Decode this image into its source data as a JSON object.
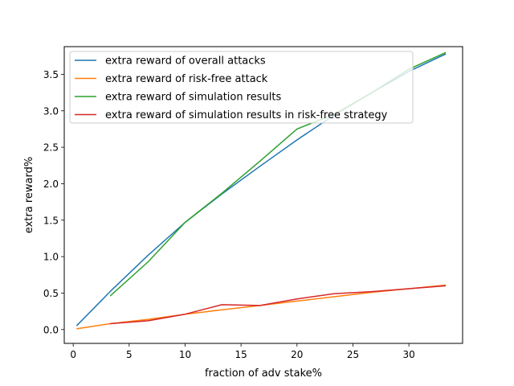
{
  "chart_data": {
    "type": "line",
    "xlabel": "fraction of adv stake%",
    "ylabel": "extra reward%",
    "xlim": [
      -0.8,
      34.8
    ],
    "ylim": [
      -0.19,
      3.88
    ],
    "xticks": [
      0,
      5,
      10,
      15,
      20,
      25,
      30
    ],
    "yticks": [
      0.0,
      0.5,
      1.0,
      1.5,
      2.0,
      2.5,
      3.0,
      3.5
    ],
    "xtick_labels": [
      "0",
      "5",
      "10",
      "15",
      "20",
      "25",
      "30"
    ],
    "ytick_labels": [
      "0.0",
      "0.5",
      "1.0",
      "1.5",
      "2.0",
      "2.5",
      "3.0",
      "3.5"
    ],
    "legend_position": "top-left",
    "series": [
      {
        "name": "extra reward of overall attacks",
        "color": "#1f77b4",
        "x": [
          0.3,
          3.3,
          6.7,
          10,
          13.3,
          16.7,
          20,
          23.3,
          26.7,
          30,
          33.3
        ],
        "y": [
          0.05,
          0.52,
          1.02,
          1.47,
          1.86,
          2.24,
          2.6,
          2.94,
          3.25,
          3.54,
          3.78
        ]
      },
      {
        "name": "extra reward of risk-free attack",
        "color": "#ff7f0e",
        "x": [
          0.3,
          3.3,
          6.7,
          10,
          13.3,
          16.7,
          20,
          23.3,
          26.7,
          30,
          33.3
        ],
        "y": [
          0.01,
          0.08,
          0.14,
          0.21,
          0.27,
          0.33,
          0.39,
          0.45,
          0.51,
          0.56,
          0.61
        ]
      },
      {
        "name": "extra reward of simulation results",
        "color": "#2ca02c",
        "x": [
          3.3,
          6.7,
          10,
          13.3,
          16.7,
          20,
          23.3,
          26.7,
          30,
          33.3
        ],
        "y": [
          0.46,
          0.93,
          1.47,
          1.87,
          2.31,
          2.75,
          2.95,
          3.25,
          3.57,
          3.8
        ]
      },
      {
        "name": "extra reward of simulation results in risk-free strategy",
        "color": "#d62728",
        "x": [
          3.3,
          6.7,
          10,
          13.3,
          16.7,
          20,
          23.3,
          26.7,
          30,
          33.3
        ],
        "y": [
          0.08,
          0.12,
          0.21,
          0.34,
          0.33,
          0.42,
          0.49,
          0.52,
          0.56,
          0.6
        ]
      }
    ]
  }
}
